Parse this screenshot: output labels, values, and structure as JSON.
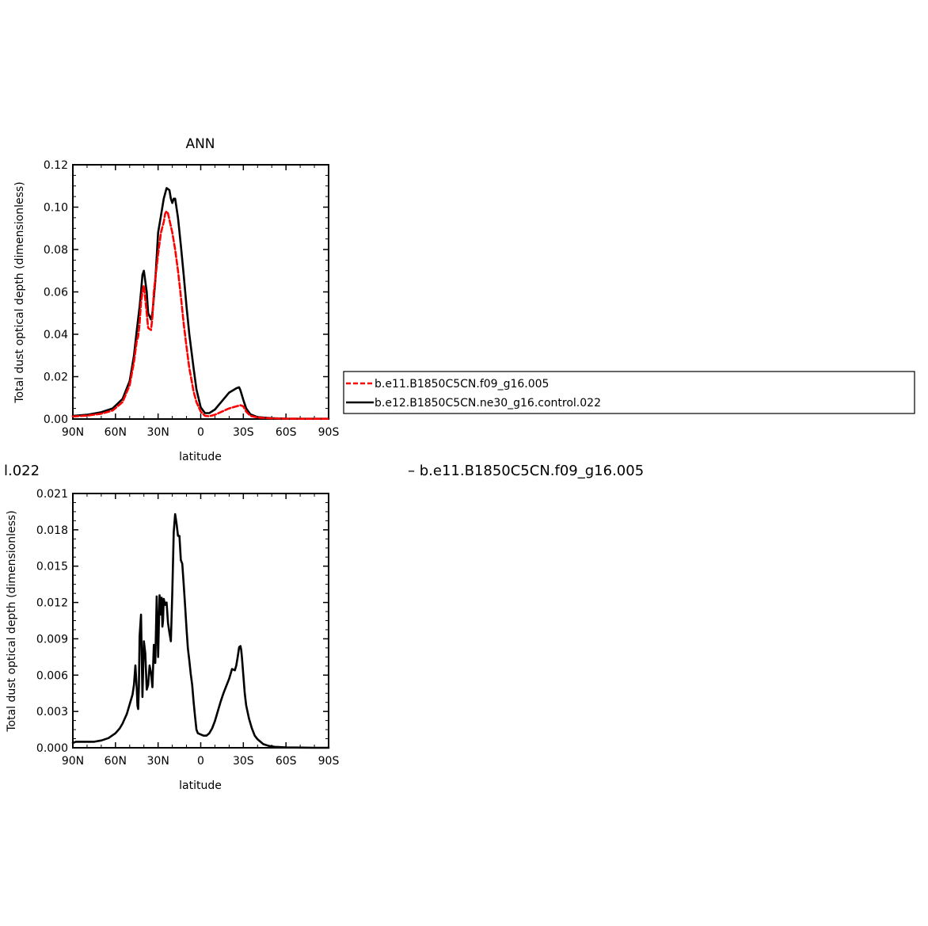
{
  "figure": {
    "left_fragment": "l.022",
    "right_fragment": "– b.e11.B1850C5CN.f09_g16.005"
  },
  "legend": {
    "entries": [
      {
        "label": "b.e11.B1850C5CN.f09_g16.005",
        "color": "#ff0000",
        "dash": true
      },
      {
        "label": "b.e12.B1850C5CN.ne30_g16.control.022",
        "color": "#000000",
        "dash": false
      }
    ]
  },
  "chart_data": [
    {
      "type": "line",
      "title": "ANN",
      "xlabel": "latitude",
      "ylabel": "Total dust optical depth (dimensionless)",
      "xlim": [
        90,
        -90
      ],
      "ylim": [
        0.0,
        0.12
      ],
      "x_ticks": [
        {
          "value": 90,
          "label": "90N"
        },
        {
          "value": 60,
          "label": "60N"
        },
        {
          "value": 30,
          "label": "30N"
        },
        {
          "value": 0,
          "label": "0"
        },
        {
          "value": -30,
          "label": "30S"
        },
        {
          "value": -60,
          "label": "60S"
        },
        {
          "value": -90,
          "label": "90S"
        }
      ],
      "y_ticks": [
        {
          "value": 0.0,
          "label": "0.00"
        },
        {
          "value": 0.02,
          "label": "0.02"
        },
        {
          "value": 0.04,
          "label": "0.04"
        },
        {
          "value": 0.06,
          "label": "0.06"
        },
        {
          "value": 0.08,
          "label": "0.08"
        },
        {
          "value": 0.1,
          "label": "0.10"
        },
        {
          "value": 0.12,
          "label": "0.12"
        }
      ],
      "series": [
        {
          "name": "b.e11.B1850C5CN.f09_g16.005",
          "color": "#ff0000",
          "dash": true,
          "x": [
            90,
            80,
            70,
            62,
            55,
            50,
            47,
            45,
            44,
            43,
            42,
            41,
            40,
            38,
            37,
            35,
            34,
            33,
            30,
            28,
            26,
            25,
            24,
            23,
            22,
            20,
            18,
            16,
            14,
            12,
            10,
            8,
            5,
            3,
            0,
            -3,
            -6,
            -10,
            -15,
            -20,
            -25,
            -28,
            -30,
            -32,
            -35,
            -40,
            -50,
            -60,
            -75,
            -90
          ],
          "y": [
            0.0012,
            0.0016,
            0.0025,
            0.004,
            0.008,
            0.016,
            0.027,
            0.037,
            0.039,
            0.045,
            0.055,
            0.06,
            0.063,
            0.05,
            0.043,
            0.042,
            0.048,
            0.06,
            0.078,
            0.088,
            0.093,
            0.097,
            0.098,
            0.097,
            0.094,
            0.088,
            0.08,
            0.07,
            0.058,
            0.045,
            0.034,
            0.024,
            0.013,
            0.008,
            0.0035,
            0.0015,
            0.0013,
            0.002,
            0.0035,
            0.005,
            0.006,
            0.0065,
            0.006,
            0.0035,
            0.0015,
            0.0007,
            0.0003,
            0.0002,
            0.0001,
            0.0001
          ]
        },
        {
          "name": "b.e12.B1850C5CN.ne30_g16.control.022",
          "color": "#000000",
          "dash": false,
          "x": [
            90,
            80,
            70,
            62,
            55,
            50,
            47,
            45,
            43,
            42,
            41,
            40,
            38,
            37,
            35,
            34,
            32,
            30,
            28,
            26,
            24,
            22,
            21,
            20,
            19,
            18,
            16,
            14,
            12,
            10,
            8,
            5,
            3,
            0,
            -3,
            -6,
            -10,
            -15,
            -20,
            -25,
            -27,
            -28,
            -30,
            -32,
            -35,
            -40,
            -50,
            -60,
            -75,
            -90
          ],
          "y": [
            0.0015,
            0.002,
            0.0032,
            0.005,
            0.0095,
            0.018,
            0.03,
            0.042,
            0.053,
            0.06,
            0.068,
            0.07,
            0.06,
            0.05,
            0.047,
            0.05,
            0.065,
            0.088,
            0.096,
            0.104,
            0.109,
            0.108,
            0.104,
            0.102,
            0.104,
            0.104,
            0.095,
            0.082,
            0.068,
            0.053,
            0.04,
            0.024,
            0.014,
            0.0055,
            0.0028,
            0.0028,
            0.0045,
            0.0085,
            0.0125,
            0.0145,
            0.015,
            0.0135,
            0.009,
            0.005,
            0.0022,
            0.0009,
            0.0004,
            0.0002,
            0.0001,
            0.0001
          ]
        }
      ]
    },
    {
      "type": "line",
      "title": "",
      "xlabel": "latitude",
      "ylabel": "Total dust optical depth (dimensionless)",
      "xlim": [
        90,
        -90
      ],
      "ylim": [
        0.0,
        0.021
      ],
      "x_ticks": [
        {
          "value": 90,
          "label": "90N"
        },
        {
          "value": 60,
          "label": "60N"
        },
        {
          "value": 30,
          "label": "30N"
        },
        {
          "value": 0,
          "label": "0"
        },
        {
          "value": -30,
          "label": "30S"
        },
        {
          "value": -60,
          "label": "60S"
        },
        {
          "value": -90,
          "label": "90S"
        }
      ],
      "y_ticks": [
        {
          "value": 0.0,
          "label": "0.000"
        },
        {
          "value": 0.003,
          "label": "0.003"
        },
        {
          "value": 0.006,
          "label": "0.006"
        },
        {
          "value": 0.009,
          "label": "0.009"
        },
        {
          "value": 0.012,
          "label": "0.012"
        },
        {
          "value": 0.015,
          "label": "0.015"
        },
        {
          "value": 0.018,
          "label": "0.018"
        },
        {
          "value": 0.021,
          "label": "0.021"
        }
      ],
      "series": [
        {
          "name": "",
          "color": "#000000",
          "dash": false,
          "x": [
            90,
            88,
            85,
            80,
            75,
            70,
            65,
            60,
            57,
            55,
            52,
            50,
            48,
            47,
            46,
            45,
            44.5,
            44,
            43.5,
            43,
            42,
            41,
            40,
            39,
            38,
            37,
            36,
            35,
            34,
            33,
            32,
            31,
            30,
            29,
            28,
            27.5,
            27,
            26.5,
            26,
            25,
            24,
            23,
            22,
            21,
            20,
            19,
            18,
            17,
            16,
            15,
            14,
            13,
            12,
            11,
            10,
            9,
            8,
            7,
            6,
            5,
            4,
            3,
            2,
            0,
            -2,
            -4,
            -6,
            -8,
            -10,
            -12,
            -14,
            -16,
            -18,
            -20,
            -22,
            -24,
            -25,
            -26,
            -27,
            -28,
            -28.5,
            -29,
            -30,
            -31,
            -32,
            -34,
            -36,
            -38,
            -40,
            -44,
            -48,
            -52,
            -56,
            -60,
            -66,
            -72,
            -80,
            -90
          ],
          "y": [
            0.0004,
            0.0005,
            0.0005,
            0.0005,
            0.0005,
            0.0006,
            0.0008,
            0.0012,
            0.0016,
            0.002,
            0.0028,
            0.0036,
            0.0044,
            0.0052,
            0.0068,
            0.0048,
            0.0035,
            0.0032,
            0.005,
            0.0092,
            0.011,
            0.0042,
            0.0088,
            0.0078,
            0.0048,
            0.0052,
            0.0068,
            0.0062,
            0.005,
            0.0085,
            0.007,
            0.0125,
            0.0075,
            0.0126,
            0.011,
            0.0124,
            0.01,
            0.0105,
            0.0123,
            0.0118,
            0.012,
            0.0103,
            0.0095,
            0.0088,
            0.0128,
            0.0178,
            0.0193,
            0.0185,
            0.0175,
            0.0175,
            0.0155,
            0.0152,
            0.0135,
            0.0117,
            0.0098,
            0.0082,
            0.0072,
            0.0061,
            0.0052,
            0.0038,
            0.0026,
            0.0015,
            0.0012,
            0.0011,
            0.001,
            0.001,
            0.0012,
            0.0016,
            0.0022,
            0.003,
            0.0038,
            0.0045,
            0.0051,
            0.0057,
            0.0065,
            0.0064,
            0.0068,
            0.0075,
            0.0083,
            0.0084,
            0.0081,
            0.0075,
            0.006,
            0.0045,
            0.0035,
            0.0024,
            0.0016,
            0.001,
            0.0007,
            0.0003,
            0.00015,
            8e-05,
            5e-05,
            3e-05,
            2e-05,
            1e-05,
            0.0,
            0.0
          ]
        }
      ]
    }
  ]
}
